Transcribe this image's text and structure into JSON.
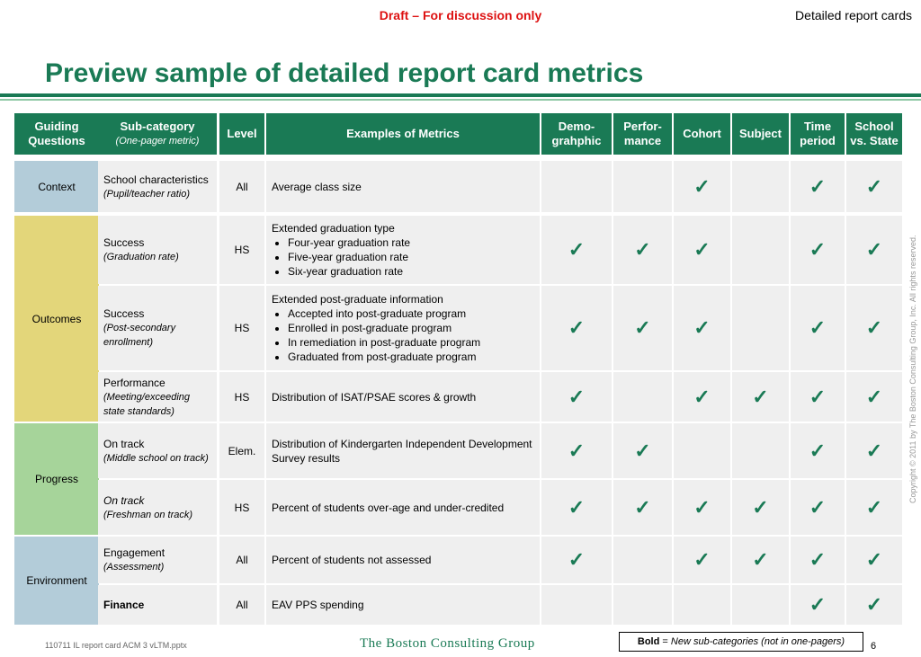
{
  "header": {
    "draft": "Draft – For discussion only",
    "topic": "Detailed report cards",
    "title": "Preview sample of detailed report card metrics"
  },
  "columns": [
    {
      "label": "Guiding Questions"
    },
    {
      "label": "Sub-category",
      "sub": "(One-pager metric)"
    },
    {
      "label": "Level"
    },
    {
      "label": "Examples of Metrics"
    },
    {
      "label": "Demo-grahphic"
    },
    {
      "label": "Perfor-mance"
    },
    {
      "label": "Cohort"
    },
    {
      "label": "Subject"
    },
    {
      "label": "Time period"
    },
    {
      "label": "School vs. State"
    }
  ],
  "groups": {
    "context": "Context",
    "outcomes": "Outcomes",
    "progress": "Progress",
    "environment": "Environment"
  },
  "rows": [
    {
      "sub": "School characteristics",
      "sub_note": "(Pupil/teacher ratio)",
      "level": "All",
      "metric": "Average class size",
      "bullets": [],
      "checks": [
        false,
        false,
        true,
        false,
        true,
        true
      ]
    },
    {
      "sub": "Success",
      "sub_note": "(Graduation rate)",
      "level": "HS",
      "metric": "Extended graduation type",
      "bullets": [
        "Four-year graduation rate",
        "Five-year graduation rate",
        "Six-year graduation rate"
      ],
      "checks": [
        true,
        true,
        true,
        false,
        true,
        true
      ]
    },
    {
      "sub": "Success",
      "sub_note": "(Post-secondary enrollment)",
      "level": "HS",
      "metric": "Extended post-graduate information",
      "bullets": [
        "Accepted into post-graduate program",
        "Enrolled in post-graduate program",
        "In remediation in post-graduate program",
        "Graduated from post-graduate program"
      ],
      "checks": [
        true,
        true,
        true,
        false,
        true,
        true
      ]
    },
    {
      "sub": "Performance",
      "sub_note": "(Meeting/exceeding state standards)",
      "level": "HS",
      "metric": "Distribution of ISAT/PSAE scores & growth",
      "bullets": [],
      "checks": [
        true,
        false,
        true,
        true,
        true,
        true
      ]
    },
    {
      "sub": "On track",
      "sub_note": "(Middle school on track)",
      "level": "Elem.",
      "metric": "Distribution of Kindergarten Independent Development Survey results",
      "bullets": [],
      "checks": [
        true,
        true,
        false,
        false,
        true,
        true
      ]
    },
    {
      "sub": "On track",
      "sub_note": "(Freshman on track)",
      "level": "HS",
      "metric": "Percent of students over-age and under-credited",
      "bullets": [],
      "checks": [
        true,
        true,
        true,
        true,
        true,
        true
      ]
    },
    {
      "sub": "Engagement",
      "sub_note": "(Assessment)",
      "level": "All",
      "metric": "Percent of students not assessed",
      "bullets": [],
      "checks": [
        true,
        false,
        true,
        true,
        true,
        true
      ]
    },
    {
      "sub": "Finance",
      "sub_note": "",
      "level": "All",
      "metric": "EAV PPS spending",
      "bullets": [],
      "checks": [
        false,
        false,
        false,
        false,
        true,
        true
      ]
    }
  ],
  "check_glyph": "✓",
  "colors": {
    "green": "#1a7a55",
    "context": "#b3ccd9",
    "outcomes": "#e3d67a",
    "progress": "#a6d49a",
    "environment": "#b3ccd9"
  },
  "footer": {
    "file": "110711 IL report card ACM 3 vLTM.pptx",
    "logo": "The Boston Consulting Group",
    "legend_bold": "Bold",
    "legend_eq": " = ",
    "legend_text": "New sub-categories (not in one-pagers)",
    "page": "6",
    "copyright": "Copyright © 2011 by The Boston Consulting Group, Inc. All rights reserved."
  }
}
